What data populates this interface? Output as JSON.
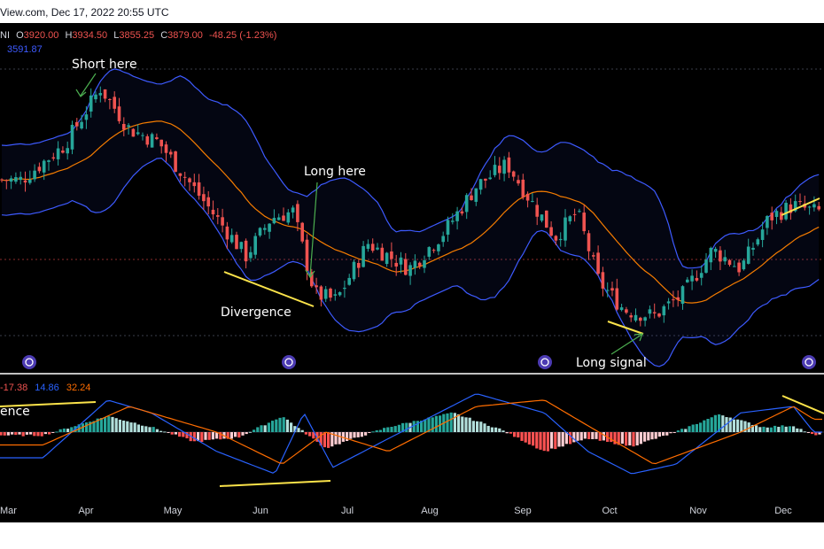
{
  "header": {
    "source_date": "View.com, Dec 17, 2022 20:55 UTC"
  },
  "legend": {
    "symbol": "NI",
    "open_label": "O",
    "open": "3920.00",
    "high_label": "H",
    "high": "3934.50",
    "low_label": "L",
    "low": "3855.25",
    "close_label": "C",
    "close": "3879.00",
    "change": "-48.25 (-1.23%)",
    "ma_value": "3591.87"
  },
  "macd_legend": {
    "hist": "-17.38",
    "macd": "14.86",
    "signal": "32.24"
  },
  "annotations": {
    "short_here": "Short here",
    "long_here": "Long here",
    "divergence": "Divergence",
    "long_signal": "Long signal",
    "macd_divergence": "ence"
  },
  "colors": {
    "background": "#000000",
    "bollinger": "#3d5afe",
    "middle_ma": "#f57c00",
    "macd_line": "#2962ff",
    "signal_line": "#ff6d00",
    "up_candle": "#26a69a",
    "down_candle": "#ef5350",
    "trendline": "#fbe34a",
    "arrow": "#4caf50"
  },
  "chart_data": [
    {
      "type": "candlestick",
      "title": "",
      "x_axis": "months",
      "x_ticks": [
        "Mar",
        "Apr",
        "May",
        "Jun",
        "Jul",
        "Aug",
        "Sep",
        "Oct",
        "Nov",
        "Dec"
      ],
      "ylim": [
        3450,
        4400
      ],
      "price_path": [
        [
          "Mar",
          4000
        ],
        [
          "Mar",
          4110
        ],
        [
          "Apr",
          4290
        ],
        [
          "Apr",
          4160
        ],
        [
          "Apr",
          4120
        ],
        [
          "May",
          4000
        ],
        [
          "May",
          3880
        ],
        [
          "May",
          3760
        ],
        [
          "Jun",
          3880
        ],
        [
          "Jun",
          3900
        ],
        [
          "Jun",
          3640
        ],
        [
          "Jun",
          3620
        ],
        [
          "Jul",
          3800
        ],
        [
          "Jul",
          3720
        ],
        [
          "Aug",
          3840
        ],
        [
          "Aug",
          3980
        ],
        [
          "Aug",
          4050
        ],
        [
          "Sep",
          3920
        ],
        [
          "Sep",
          3820
        ],
        [
          "Sep",
          3900
        ],
        [
          "Sep",
          3680
        ],
        [
          "Oct",
          3590
        ],
        [
          "Oct",
          3570
        ],
        [
          "Oct",
          3640
        ],
        [
          "Nov",
          3780
        ],
        [
          "Nov",
          3720
        ],
        [
          "Nov",
          3880
        ],
        [
          "Dec",
          3920
        ],
        [
          "Dec",
          3900
        ]
      ],
      "overlays": [
        "Bollinger upper",
        "Bollinger lower",
        "Moving average"
      ],
      "last": {
        "open": 3920.0,
        "high": 3934.5,
        "low": 3855.25,
        "close": 3879.0,
        "change": -48.25,
        "change_pct": -1.23
      },
      "ma": 3591.87
    },
    {
      "type": "bar",
      "title": "",
      "x_ticks": [
        "Mar",
        "Apr",
        "May",
        "Jun",
        "Jul",
        "Aug",
        "Sep",
        "Oct",
        "Nov",
        "Dec"
      ],
      "ylim": [
        -80,
        80
      ],
      "histogram": [
        [
          "Mar",
          -5
        ],
        [
          "Apr",
          25
        ],
        [
          "Apr",
          8
        ],
        [
          "May",
          -15
        ],
        [
          "May",
          -8
        ],
        [
          "Jun",
          25
        ],
        [
          "Jun",
          -25
        ],
        [
          "Jul",
          8
        ],
        [
          "Aug",
          30
        ],
        [
          "Aug",
          5
        ],
        [
          "Sep",
          -30
        ],
        [
          "Sep",
          -10
        ],
        [
          "Oct",
          -22
        ],
        [
          "Oct",
          0
        ],
        [
          "Nov",
          28
        ],
        [
          "Nov",
          8
        ],
        [
          "Dec",
          10
        ],
        [
          "Dec",
          -5
        ]
      ],
      "macd": [
        [
          "Mar",
          -40
        ],
        [
          "Apr",
          50
        ],
        [
          "Apr",
          30
        ],
        [
          "May",
          -30
        ],
        [
          "Jun",
          -65
        ],
        [
          "Jun",
          30
        ],
        [
          "Jun",
          -55
        ],
        [
          "Jul",
          -10
        ],
        [
          "Aug",
          60
        ],
        [
          "Sep",
          30
        ],
        [
          "Sep",
          -30
        ],
        [
          "Oct",
          -65
        ],
        [
          "Oct",
          -50
        ],
        [
          "Nov",
          30
        ],
        [
          "Dec",
          40
        ],
        [
          "Dec",
          0
        ]
      ],
      "signal": [
        [
          "Mar",
          -20
        ],
        [
          "Apr",
          40
        ],
        [
          "May",
          0
        ],
        [
          "Jun",
          -50
        ],
        [
          "Jun",
          0
        ],
        [
          "Jul",
          -30
        ],
        [
          "Aug",
          40
        ],
        [
          "Sep",
          50
        ],
        [
          "Sep",
          10
        ],
        [
          "Oct",
          -50
        ],
        [
          "Nov",
          0
        ],
        [
          "Dec",
          40
        ],
        [
          "Dec",
          20
        ]
      ],
      "last": {
        "histogram": -17.38,
        "macd": 14.86,
        "signal": 32.24
      }
    }
  ]
}
